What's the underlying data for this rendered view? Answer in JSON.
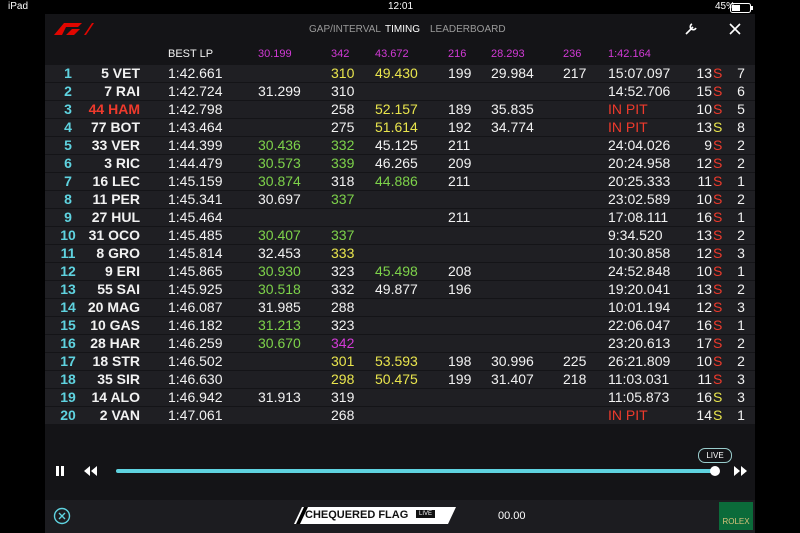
{
  "status": {
    "device": "iPad",
    "time": "12:01",
    "battery": "45%"
  },
  "nav": {
    "tabs": [
      "GAP/INTERVAL",
      "TIMING",
      "LEADERBOARD"
    ],
    "active": 1
  },
  "table": {
    "header": [
      {
        "text": "BEST LP",
        "color": "white"
      },
      {
        "text": "30.199",
        "color": "purple"
      },
      {
        "text": "342",
        "color": "purple"
      },
      {
        "text": "43.672",
        "color": "purple"
      },
      {
        "text": "216",
        "color": "purple"
      },
      {
        "text": "28.293",
        "color": "purple"
      },
      {
        "text": "236",
        "color": "purple"
      },
      {
        "text": "1:42.164",
        "color": "purple"
      }
    ],
    "rows": [
      {
        "cells": [
          "1",
          "5 VET",
          "1:42.661",
          null,
          "310",
          "49.430",
          "199",
          "29.984",
          "217",
          "15:07.097",
          "13",
          "S",
          "7"
        ],
        "colors": [
          null,
          null,
          null,
          null,
          "yellow",
          "yellow",
          null,
          null,
          null,
          null,
          null,
          "red",
          null
        ]
      },
      {
        "cells": [
          "2",
          "7 RAI",
          "1:42.724",
          "31.299",
          "310",
          null,
          null,
          null,
          null,
          "14:52.706",
          "15",
          "S",
          "6"
        ],
        "colors": [
          null,
          null,
          null,
          null,
          null,
          null,
          null,
          null,
          null,
          null,
          null,
          "red",
          null
        ]
      },
      {
        "cells": [
          "3",
          "44 HAM",
          "1:42.798",
          null,
          "258",
          "52.157",
          "189",
          "35.835",
          null,
          "IN PIT",
          "10",
          "S",
          "5"
        ],
        "colors": [
          null,
          "red",
          null,
          null,
          null,
          "yellow",
          null,
          null,
          null,
          "red",
          null,
          "red",
          null
        ]
      },
      {
        "cells": [
          "4",
          "77 BOT",
          "1:43.464",
          null,
          "275",
          "51.614",
          "192",
          "34.774",
          null,
          "IN PIT",
          "13",
          "S",
          "8"
        ],
        "colors": [
          null,
          null,
          null,
          null,
          null,
          "yellow",
          null,
          null,
          null,
          "red",
          null,
          "yellow",
          null
        ]
      },
      {
        "cells": [
          "5",
          "33 VER",
          "1:44.399",
          "30.436",
          "332",
          "45.125",
          "211",
          null,
          null,
          "24:04.026",
          "9",
          "S",
          "2"
        ],
        "colors": [
          null,
          null,
          null,
          "green",
          "green",
          null,
          null,
          null,
          null,
          null,
          null,
          "red",
          null
        ]
      },
      {
        "cells": [
          "6",
          "3 RIC",
          "1:44.479",
          "30.573",
          "339",
          "46.265",
          "209",
          null,
          null,
          "20:24.958",
          "12",
          "S",
          "2"
        ],
        "colors": [
          null,
          null,
          null,
          "green",
          "green",
          null,
          null,
          null,
          null,
          null,
          null,
          "red",
          null
        ]
      },
      {
        "cells": [
          "7",
          "16 LEC",
          "1:45.159",
          "30.874",
          "318",
          "44.886",
          "211",
          null,
          null,
          "20:25.333",
          "11",
          "S",
          "1"
        ],
        "colors": [
          null,
          null,
          null,
          "green",
          null,
          "green",
          null,
          null,
          null,
          null,
          null,
          "red",
          null
        ]
      },
      {
        "cells": [
          "8",
          "11 PER",
          "1:45.341",
          "30.697",
          "337",
          null,
          null,
          null,
          null,
          "23:02.589",
          "10",
          "S",
          "2"
        ],
        "colors": [
          null,
          null,
          null,
          null,
          "green",
          null,
          null,
          null,
          null,
          null,
          null,
          "red",
          null
        ]
      },
      {
        "cells": [
          "9",
          "27 HUL",
          "1:45.464",
          null,
          null,
          null,
          "211",
          null,
          null,
          "17:08.111",
          "16",
          "S",
          "1"
        ],
        "colors": [
          null,
          null,
          null,
          null,
          null,
          null,
          null,
          null,
          null,
          null,
          null,
          "red",
          null
        ]
      },
      {
        "cells": [
          "10",
          "31 OCO",
          "1:45.485",
          "30.407",
          "337",
          null,
          null,
          null,
          null,
          "9:34.520",
          "13",
          "S",
          "2"
        ],
        "colors": [
          null,
          null,
          null,
          "green",
          "green",
          null,
          null,
          null,
          null,
          null,
          null,
          "red",
          null
        ]
      },
      {
        "cells": [
          "11",
          "8 GRO",
          "1:45.814",
          "32.453",
          "333",
          null,
          null,
          null,
          null,
          "10:30.858",
          "12",
          "S",
          "3"
        ],
        "colors": [
          null,
          null,
          null,
          null,
          "yellow",
          null,
          null,
          null,
          null,
          null,
          null,
          "red",
          null
        ]
      },
      {
        "cells": [
          "12",
          "9 ERI",
          "1:45.865",
          "30.930",
          "323",
          "45.498",
          "208",
          null,
          null,
          "24:52.848",
          "10",
          "S",
          "1"
        ],
        "colors": [
          null,
          null,
          null,
          "green",
          null,
          "green",
          null,
          null,
          null,
          null,
          null,
          "red",
          null
        ]
      },
      {
        "cells": [
          "13",
          "55 SAI",
          "1:45.925",
          "30.518",
          "332",
          "49.877",
          "196",
          null,
          null,
          "19:20.041",
          "13",
          "S",
          "2"
        ],
        "colors": [
          null,
          null,
          null,
          "green",
          null,
          null,
          null,
          null,
          null,
          null,
          null,
          "red",
          null
        ]
      },
      {
        "cells": [
          "14",
          "20 MAG",
          "1:46.087",
          "31.985",
          "288",
          null,
          null,
          null,
          null,
          "10:01.194",
          "12",
          "S",
          "3"
        ],
        "colors": [
          null,
          null,
          null,
          null,
          null,
          null,
          null,
          null,
          null,
          null,
          null,
          "red",
          null
        ]
      },
      {
        "cells": [
          "15",
          "10 GAS",
          "1:46.182",
          "31.213",
          "323",
          null,
          null,
          null,
          null,
          "22:06.047",
          "16",
          "S",
          "1"
        ],
        "colors": [
          null,
          null,
          null,
          "green",
          null,
          null,
          null,
          null,
          null,
          null,
          null,
          "red",
          null
        ]
      },
      {
        "cells": [
          "16",
          "28 HAR",
          "1:46.259",
          "30.670",
          "342",
          null,
          null,
          null,
          null,
          "23:20.613",
          "17",
          "S",
          "2"
        ],
        "colors": [
          null,
          null,
          null,
          "green",
          "purple",
          null,
          null,
          null,
          null,
          null,
          null,
          "red",
          null
        ]
      },
      {
        "cells": [
          "17",
          "18 STR",
          "1:46.502",
          null,
          "301",
          "53.593",
          "198",
          "30.996",
          "225",
          "26:21.809",
          "10",
          "S",
          "2"
        ],
        "colors": [
          null,
          null,
          null,
          null,
          "yellow",
          "yellow",
          null,
          null,
          null,
          null,
          null,
          "red",
          null
        ]
      },
      {
        "cells": [
          "18",
          "35 SIR",
          "1:46.630",
          null,
          "298",
          "50.475",
          "199",
          "31.407",
          "218",
          "11:03.031",
          "11",
          "S",
          "3"
        ],
        "colors": [
          null,
          null,
          null,
          null,
          "yellow",
          "yellow",
          null,
          null,
          null,
          null,
          null,
          "red",
          null
        ]
      },
      {
        "cells": [
          "19",
          "14 ALO",
          "1:46.942",
          "31.913",
          "319",
          null,
          null,
          null,
          null,
          "11:05.873",
          "16",
          "S",
          "3"
        ],
        "colors": [
          null,
          null,
          null,
          null,
          null,
          null,
          null,
          null,
          null,
          null,
          null,
          "yellow",
          null
        ]
      },
      {
        "cells": [
          "20",
          "2 VAN",
          "1:47.061",
          null,
          "268",
          null,
          null,
          null,
          null,
          "IN PIT",
          "14",
          "S",
          "1"
        ],
        "colors": [
          null,
          null,
          null,
          null,
          null,
          null,
          null,
          null,
          null,
          "red",
          null,
          "yellow",
          null
        ]
      }
    ]
  },
  "footer": {
    "live": "LIVE",
    "flag": "CHEQUERED FLAG",
    "flag_badge": "LIVE",
    "clock": "00.00",
    "sponsor": "ROLEX"
  }
}
